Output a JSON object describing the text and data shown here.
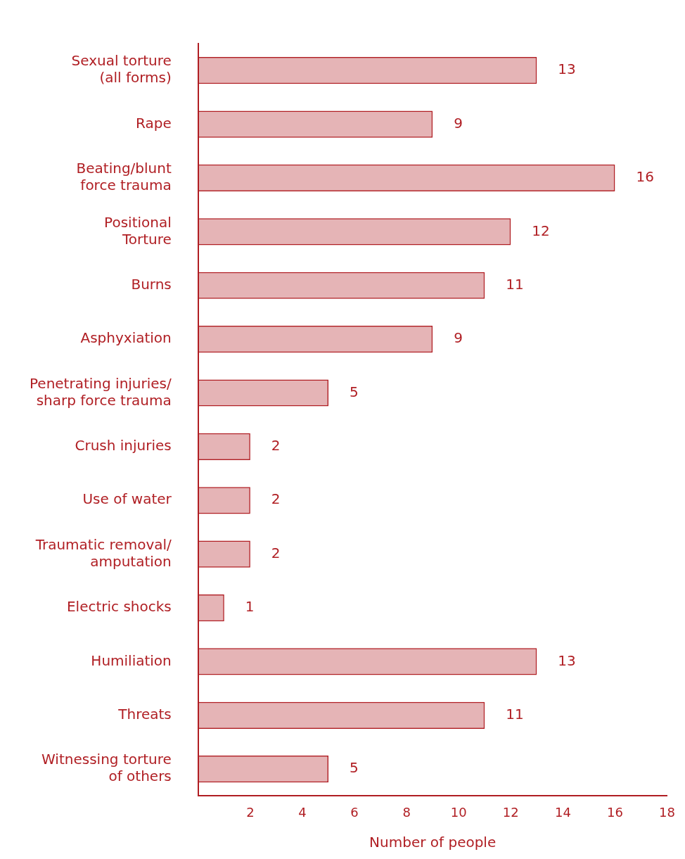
{
  "chart_data": {
    "type": "bar",
    "orientation": "horizontal",
    "xlabel": "Number of people",
    "categories": [
      "Sexual torture (all forms)",
      "Rape",
      "Beating/blunt force trauma",
      "Positional Torture",
      "Burns",
      "Asphyxiation",
      "Penetrating injuries/ sharp force trauma",
      "Crush injuries",
      "Use of water",
      "Traumatic removal/ amputation",
      "Electric shocks",
      "Humiliation",
      "Threats",
      "Witnessing torture of others"
    ],
    "values": [
      13,
      9,
      16,
      12,
      11,
      9,
      5,
      2,
      2,
      2,
      1,
      13,
      11,
      5
    ],
    "color": "#b01e23",
    "xlim": [
      0,
      18
    ],
    "xticks": [
      2,
      4,
      6,
      8,
      10,
      12,
      14,
      16,
      18
    ],
    "grid": false,
    "legend": false,
    "data_labels": true
  }
}
